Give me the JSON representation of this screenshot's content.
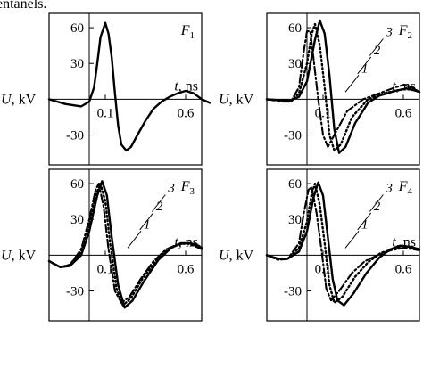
{
  "header_fragment": "entanels.",
  "chart_data": [
    {
      "type": "line",
      "panel_label": "F1",
      "xlabel": "t, ns",
      "ylabel": "U, kV",
      "x_ticks": [
        "0.1",
        "0.6"
      ],
      "y_ticks": [
        "60",
        "30",
        "-30"
      ],
      "series": [
        {
          "line_style": "solid",
          "points": [
            [
              -0.25,
              0
            ],
            [
              -0.15,
              -4
            ],
            [
              -0.05,
              -6
            ],
            [
              0.0,
              -2
            ],
            [
              0.03,
              10
            ],
            [
              0.05,
              30
            ],
            [
              0.07,
              52
            ],
            [
              0.1,
              64
            ],
            [
              0.12,
              55
            ],
            [
              0.14,
              35
            ],
            [
              0.16,
              5
            ],
            [
              0.18,
              -22
            ],
            [
              0.2,
              -38
            ],
            [
              0.23,
              -43
            ],
            [
              0.26,
              -40
            ],
            [
              0.3,
              -30
            ],
            [
              0.35,
              -18
            ],
            [
              0.4,
              -8
            ],
            [
              0.45,
              -2
            ],
            [
              0.5,
              2
            ],
            [
              0.55,
              5
            ],
            [
              0.6,
              7
            ],
            [
              0.65,
              5
            ],
            [
              0.7,
              0
            ],
            [
              0.75,
              -3
            ]
          ]
        }
      ]
    },
    {
      "type": "line",
      "panel_label": "F2",
      "xlabel": "t, ns",
      "ylabel": "U, kV",
      "x_ticks": [
        "0.1",
        "0.6"
      ],
      "y_ticks": [
        "60",
        "30",
        "-30"
      ],
      "series": [
        {
          "name": "3",
          "line_style": "dash-dot",
          "points": [
            [
              -0.25,
              0
            ],
            [
              -0.15,
              -2
            ],
            [
              -0.1,
              -2
            ],
            [
              -0.05,
              10
            ],
            [
              -0.02,
              40
            ],
            [
              0.0,
              57
            ],
            [
              0.02,
              57
            ],
            [
              0.04,
              35
            ],
            [
              0.07,
              0
            ],
            [
              0.1,
              -30
            ],
            [
              0.13,
              -40
            ],
            [
              0.17,
              -30
            ],
            [
              0.25,
              -10
            ],
            [
              0.35,
              0
            ],
            [
              0.45,
              5
            ],
            [
              0.55,
              10
            ],
            [
              0.6,
              12
            ],
            [
              0.65,
              10
            ],
            [
              0.7,
              6
            ]
          ]
        },
        {
          "name": "2",
          "line_style": "dotted",
          "points": [
            [
              -0.25,
              0
            ],
            [
              -0.15,
              -1
            ],
            [
              -0.1,
              -2
            ],
            [
              -0.05,
              5
            ],
            [
              0.0,
              30
            ],
            [
              0.03,
              55
            ],
            [
              0.05,
              63
            ],
            [
              0.08,
              45
            ],
            [
              0.11,
              10
            ],
            [
              0.14,
              -30
            ],
            [
              0.17,
              -43
            ],
            [
              0.21,
              -38
            ],
            [
              0.28,
              -15
            ],
            [
              0.38,
              0
            ],
            [
              0.48,
              5
            ],
            [
              0.58,
              8
            ],
            [
              0.65,
              10
            ],
            [
              0.7,
              6
            ]
          ]
        },
        {
          "name": "1",
          "line_style": "solid",
          "points": [
            [
              -0.25,
              0
            ],
            [
              -0.15,
              -1
            ],
            [
              -0.1,
              -1
            ],
            [
              -0.05,
              2
            ],
            [
              0.0,
              15
            ],
            [
              0.05,
              50
            ],
            [
              0.08,
              66
            ],
            [
              0.11,
              55
            ],
            [
              0.14,
              20
            ],
            [
              0.17,
              -25
            ],
            [
              0.2,
              -45
            ],
            [
              0.24,
              -40
            ],
            [
              0.3,
              -20
            ],
            [
              0.38,
              -3
            ],
            [
              0.45,
              3
            ],
            [
              0.55,
              7
            ],
            [
              0.62,
              9
            ],
            [
              0.68,
              7
            ],
            [
              0.7,
              6
            ]
          ]
        }
      ]
    },
    {
      "type": "line",
      "panel_label": "F3",
      "xlabel": "t, ns",
      "ylabel": "U, kV",
      "x_ticks": [
        "0.1",
        "0.6"
      ],
      "y_ticks": [
        "60",
        "30",
        "-30"
      ],
      "series": [
        {
          "name": "3",
          "line_style": "dash-dot",
          "points": [
            [
              -0.25,
              -5
            ],
            [
              -0.18,
              -10
            ],
            [
              -0.12,
              -8
            ],
            [
              -0.05,
              5
            ],
            [
              0.0,
              30
            ],
            [
              0.04,
              55
            ],
            [
              0.06,
              60
            ],
            [
              0.09,
              40
            ],
            [
              0.12,
              5
            ],
            [
              0.16,
              -30
            ],
            [
              0.2,
              -40
            ],
            [
              0.25,
              -35
            ],
            [
              0.32,
              -20
            ],
            [
              0.4,
              -5
            ],
            [
              0.48,
              5
            ],
            [
              0.55,
              9
            ],
            [
              0.6,
              10
            ],
            [
              0.65,
              8
            ],
            [
              0.7,
              5
            ]
          ]
        },
        {
          "name": "2",
          "line_style": "dotted",
          "points": [
            [
              -0.25,
              -5
            ],
            [
              -0.18,
              -10
            ],
            [
              -0.12,
              -8
            ],
            [
              -0.05,
              3
            ],
            [
              0.0,
              25
            ],
            [
              0.04,
              50
            ],
            [
              0.07,
              60
            ],
            [
              0.1,
              45
            ],
            [
              0.13,
              10
            ],
            [
              0.17,
              -28
            ],
            [
              0.21,
              -42
            ],
            [
              0.26,
              -36
            ],
            [
              0.33,
              -20
            ],
            [
              0.42,
              -4
            ],
            [
              0.5,
              6
            ],
            [
              0.56,
              9
            ],
            [
              0.62,
              10
            ],
            [
              0.67,
              8
            ],
            [
              0.7,
              6
            ]
          ]
        },
        {
          "name": "1",
          "line_style": "solid",
          "points": [
            [
              -0.25,
              -5
            ],
            [
              -0.18,
              -10
            ],
            [
              -0.12,
              -9
            ],
            [
              -0.05,
              0
            ],
            [
              0.0,
              20
            ],
            [
              0.05,
              50
            ],
            [
              0.08,
              62
            ],
            [
              0.11,
              50
            ],
            [
              0.14,
              15
            ],
            [
              0.18,
              -25
            ],
            [
              0.22,
              -44
            ],
            [
              0.27,
              -38
            ],
            [
              0.34,
              -22
            ],
            [
              0.43,
              -4
            ],
            [
              0.51,
              6
            ],
            [
              0.57,
              10
            ],
            [
              0.63,
              10
            ],
            [
              0.68,
              8
            ],
            [
              0.7,
              6
            ]
          ]
        }
      ]
    },
    {
      "type": "line",
      "panel_label": "F4",
      "xlabel": "t, ns",
      "ylabel": "U, kV",
      "x_ticks": [
        "0.1",
        "0.6"
      ],
      "y_ticks": [
        "60",
        "30",
        "-30"
      ],
      "series": [
        {
          "name": "3",
          "line_style": "dash-dot",
          "points": [
            [
              -0.25,
              0
            ],
            [
              -0.18,
              -4
            ],
            [
              -0.12,
              -3
            ],
            [
              -0.05,
              10
            ],
            [
              -0.02,
              35
            ],
            [
              0.01,
              55
            ],
            [
              0.03,
              57
            ],
            [
              0.06,
              35
            ],
            [
              0.09,
              5
            ],
            [
              0.12,
              -28
            ],
            [
              0.15,
              -38
            ],
            [
              0.2,
              -30
            ],
            [
              0.28,
              -15
            ],
            [
              0.36,
              -5
            ],
            [
              0.44,
              0
            ],
            [
              0.52,
              4
            ],
            [
              0.6,
              6
            ],
            [
              0.66,
              5
            ],
            [
              0.7,
              4
            ]
          ]
        },
        {
          "name": "2",
          "line_style": "dotted",
          "points": [
            [
              -0.25,
              0
            ],
            [
              -0.18,
              -3
            ],
            [
              -0.12,
              -3
            ],
            [
              -0.05,
              6
            ],
            [
              0.0,
              28
            ],
            [
              0.03,
              52
            ],
            [
              0.05,
              60
            ],
            [
              0.08,
              42
            ],
            [
              0.11,
              10
            ],
            [
              0.14,
              -25
            ],
            [
              0.17,
              -40
            ],
            [
              0.22,
              -35
            ],
            [
              0.3,
              -18
            ],
            [
              0.38,
              -6
            ],
            [
              0.46,
              2
            ],
            [
              0.54,
              5
            ],
            [
              0.6,
              8
            ],
            [
              0.66,
              6
            ],
            [
              0.7,
              4
            ]
          ]
        },
        {
          "name": "1",
          "line_style": "solid",
          "points": [
            [
              -0.25,
              0
            ],
            [
              -0.18,
              -3
            ],
            [
              -0.12,
              -3
            ],
            [
              -0.05,
              3
            ],
            [
              0.0,
              20
            ],
            [
              0.04,
              48
            ],
            [
              0.07,
              61
            ],
            [
              0.1,
              50
            ],
            [
              0.13,
              15
            ],
            [
              0.16,
              -20
            ],
            [
              0.19,
              -38
            ],
            [
              0.23,
              -42
            ],
            [
              0.29,
              -32
            ],
            [
              0.37,
              -15
            ],
            [
              0.45,
              -2
            ],
            [
              0.52,
              5
            ],
            [
              0.58,
              8
            ],
            [
              0.64,
              7
            ],
            [
              0.7,
              5
            ]
          ]
        }
      ]
    }
  ]
}
